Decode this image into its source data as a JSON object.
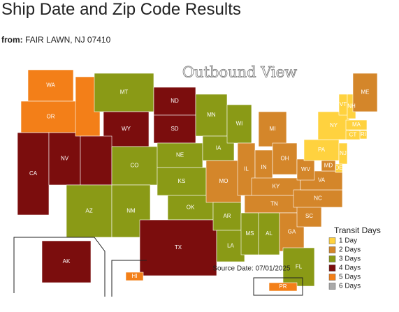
{
  "header": {
    "title": "Ship Date and Zip Code Results",
    "from_label": "from:",
    "from_value": "FAIR LAWN, NJ 07410"
  },
  "map": {
    "title": "Outbound View",
    "source": "Source Date: 07/01/2025",
    "legend": {
      "title": "Transit Days",
      "items": [
        {
          "days": 1,
          "label": "1 Day",
          "color": "#ffd23f"
        },
        {
          "days": 2,
          "label": "2 Days",
          "color": "#d4862a"
        },
        {
          "days": 3,
          "label": "3 Days",
          "color": "#8a9a16"
        },
        {
          "days": 4,
          "label": "4 Days",
          "color": "#7b0d0d"
        },
        {
          "days": 5,
          "label": "5 Days",
          "color": "#f37f18"
        },
        {
          "days": 6,
          "label": "6 Days",
          "color": "#a9a9a9"
        }
      ]
    },
    "states": [
      {
        "label": "WA",
        "days": 5
      },
      {
        "label": "OR",
        "days": 5
      },
      {
        "label": "CA",
        "days": 4
      },
      {
        "label": "NV",
        "days": 4
      },
      {
        "label": null,
        "days": 5
      },
      {
        "label": "MT",
        "days": 3
      },
      {
        "label": "WY",
        "days": 4
      },
      {
        "label": null,
        "days": 4
      },
      {
        "label": "CO",
        "days": 3
      },
      {
        "label": "AZ",
        "days": 3
      },
      {
        "label": "NM",
        "days": 3
      },
      {
        "label": "ND",
        "days": 4
      },
      {
        "label": "SD",
        "days": 4
      },
      {
        "label": "NE",
        "days": 3
      },
      {
        "label": "KS",
        "days": 3
      },
      {
        "label": "OK",
        "days": 3
      },
      {
        "label": "TX",
        "days": 4
      },
      {
        "label": "MN",
        "days": 3
      },
      {
        "label": "IA",
        "days": 3
      },
      {
        "label": "MO",
        "days": 2
      },
      {
        "label": "AR",
        "days": 3
      },
      {
        "label": "LA",
        "days": 3
      },
      {
        "label": "WI",
        "days": 3
      },
      {
        "label": "IL",
        "days": 2
      },
      {
        "label": "MI",
        "days": 2
      },
      {
        "label": "IN",
        "days": 2
      },
      {
        "label": "OH",
        "days": 2
      },
      {
        "label": "KY",
        "days": 2
      },
      {
        "label": "TN",
        "days": 2
      },
      {
        "label": "MS",
        "days": 3
      },
      {
        "label": "AL",
        "days": 3
      },
      {
        "label": "GA",
        "days": 2
      },
      {
        "label": "FL",
        "days": 3
      },
      {
        "label": "SC",
        "days": 2
      },
      {
        "label": "NC",
        "days": 2
      },
      {
        "label": "VA",
        "days": 2
      },
      {
        "label": "WV",
        "days": 2
      },
      {
        "label": "PA",
        "days": 1
      },
      {
        "label": "NY",
        "days": 1
      },
      {
        "label": "VT",
        "days": 1
      },
      {
        "label": "NH",
        "days": 1
      },
      {
        "label": "ME",
        "days": 2
      },
      {
        "label": "MA",
        "days": 1
      },
      {
        "label": "RI",
        "days": 1
      },
      {
        "label": "CT",
        "days": 1
      },
      {
        "label": "NJ",
        "days": 1
      },
      {
        "label": "DE",
        "days": 1
      },
      {
        "label": "MD",
        "days": 2
      },
      {
        "label": "AK",
        "days": 4
      },
      {
        "label": "HI",
        "days": 5
      },
      {
        "label": "PR",
        "days": 5
      }
    ]
  }
}
